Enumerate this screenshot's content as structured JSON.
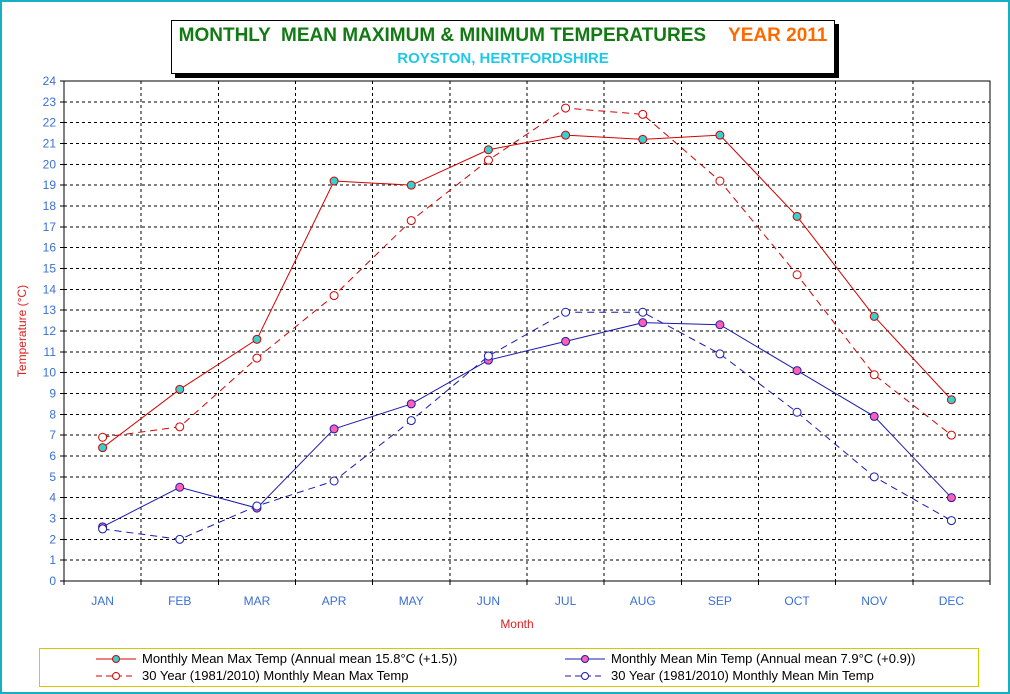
{
  "title": {
    "main": "MONTHLY  MEAN MAXIMUM & MINIMUM TEMPERATURES",
    "year": "YEAR 2011",
    "subtitle": "ROYSTON, HERTFORDSHIRE"
  },
  "colors": {
    "border": "#17b0c0",
    "title_main": "#127a12",
    "title_year": "#ff6a00",
    "subtitle": "#1ec8e8",
    "axis_text": "#3a6fd8",
    "axis_label": "#e02020",
    "max_line": "#d40000",
    "min_line": "#1a1ab0",
    "max_marker": "#35d0d0",
    "min_marker": "#ff5fb0"
  },
  "chart_data": {
    "type": "line",
    "categories": [
      "JAN",
      "FEB",
      "MAR",
      "APR",
      "MAY",
      "JUN",
      "JUL",
      "AUG",
      "SEP",
      "OCT",
      "NOV",
      "DEC"
    ],
    "xlabel": "Month",
    "ylabel": "Temperature (°C)",
    "ylim": [
      0,
      24
    ],
    "yticks": [
      0,
      1,
      2,
      3,
      4,
      5,
      6,
      7,
      8,
      9,
      10,
      11,
      12,
      13,
      14,
      15,
      16,
      17,
      18,
      19,
      20,
      21,
      22,
      23,
      24
    ],
    "grid": true,
    "legend_position": "bottom",
    "series": [
      {
        "name": "Monthly Mean Max Temp (Annual mean 15.8°C (+1.5))",
        "style": "solid",
        "color": "#d40000",
        "marker": "filled-cyan",
        "values": [
          6.4,
          9.2,
          11.6,
          19.2,
          19.0,
          20.7,
          21.4,
          21.2,
          21.4,
          17.5,
          12.7,
          8.7
        ]
      },
      {
        "name": "Monthly Mean Min Temp (Annual mean 7.9°C (+0.9))",
        "style": "solid",
        "color": "#1a1ab0",
        "marker": "filled-pink",
        "values": [
          2.6,
          4.5,
          3.5,
          7.3,
          8.5,
          10.6,
          11.5,
          12.4,
          12.3,
          10.1,
          7.9,
          4.0
        ]
      },
      {
        "name": "30 Year (1981/2010) Monthly Mean Max Temp",
        "style": "dashed",
        "color": "#d40000",
        "marker": "open",
        "values": [
          6.9,
          7.4,
          10.7,
          13.7,
          17.3,
          20.2,
          22.7,
          22.4,
          19.2,
          14.7,
          9.9,
          7.0
        ]
      },
      {
        "name": "30 Year (1981/2010) Monthly Mean Min Temp",
        "style": "dashed",
        "color": "#1a1ab0",
        "marker": "open",
        "values": [
          2.5,
          2.0,
          3.6,
          4.8,
          7.7,
          10.8,
          12.9,
          12.9,
          10.9,
          8.1,
          5.0,
          2.9
        ]
      }
    ]
  },
  "legend": {
    "max": "Monthly Mean Max Temp (Annual mean 15.8°C (+1.5))",
    "min": "Monthly Mean Min Temp (Annual mean 7.9°C (+0.9))",
    "max30": "30 Year (1981/2010) Monthly Mean Max Temp",
    "min30": "30 Year (1981/2010) Monthly Mean Min Temp"
  }
}
